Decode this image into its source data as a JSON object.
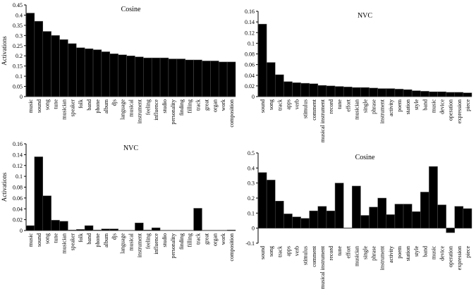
{
  "chart_data": [
    {
      "type": "bar",
      "title": "Cosine",
      "ylabel": "Activations",
      "ylim": [
        0,
        0.45
      ],
      "yticks": [
        "0",
        "0.05",
        "0.1",
        "0.15",
        "0.2",
        "0.25",
        "0.3",
        "0.35",
        "0.4",
        "0.45"
      ],
      "categories": [
        "music",
        "sound",
        "song",
        "tune",
        "musician",
        "speaker",
        "folk",
        "band",
        "phone",
        "album",
        "djs",
        "language",
        "musical",
        "instrument",
        "feeling",
        "influence",
        "studio",
        "personality",
        "finding",
        "filling",
        "track",
        "great",
        "organ",
        "work",
        "composition"
      ],
      "values": [
        0.41,
        0.37,
        0.32,
        0.3,
        0.28,
        0.26,
        0.24,
        0.235,
        0.23,
        0.22,
        0.21,
        0.205,
        0.2,
        0.195,
        0.19,
        0.19,
        0.19,
        0.185,
        0.185,
        0.18,
        0.18,
        0.175,
        0.175,
        0.17,
        0.17
      ]
    },
    {
      "type": "bar",
      "title": "NVC",
      "ylabel": "",
      "ylim": [
        0,
        0.16
      ],
      "yticks": [
        "0",
        "0.02",
        "0.04",
        "0.06",
        "0.08",
        "0.1",
        "0.12",
        "0.14",
        "0.16"
      ],
      "categories": [
        "sound",
        "song",
        "track",
        "apps",
        "verb",
        "stimulus",
        "comment",
        "musical instrument",
        "record",
        "tune",
        "effort",
        "musician",
        "single",
        "phrase",
        "instrument",
        "activity",
        "poem",
        "station",
        "style",
        "band",
        "music",
        "device",
        "operation",
        "expression",
        "piece"
      ],
      "values": [
        0.136,
        0.064,
        0.041,
        0.028,
        0.026,
        0.025,
        0.024,
        0.021,
        0.02,
        0.019,
        0.018,
        0.017,
        0.017,
        0.016,
        0.015,
        0.015,
        0.014,
        0.013,
        0.011,
        0.01,
        0.009,
        0.009,
        0.008,
        0.008,
        0.007
      ]
    },
    {
      "type": "bar",
      "title": "NVC",
      "ylabel": "Activations",
      "ylim": [
        0,
        0.16
      ],
      "yticks": [
        "0",
        "0.02",
        "0.04",
        "0.06",
        "0.08",
        "0.1",
        "0.12",
        "0.14",
        "0.16"
      ],
      "categories": [
        "music",
        "sound",
        "song",
        "tune",
        "musician",
        "speaker",
        "folk",
        "band",
        "phone",
        "album",
        "djs",
        "language",
        "musical",
        "instrument",
        "feeling",
        "influence",
        "studio",
        "personality",
        "finding",
        "filling",
        "track",
        "great",
        "organ",
        "work",
        "composition"
      ],
      "values": [
        0.009,
        0.136,
        0.064,
        0.019,
        0.017,
        0.001,
        0.002,
        0.009,
        0.001,
        0.003,
        0.003,
        0.0005,
        0.0005,
        0.014,
        0.001,
        0.005,
        0.0005,
        0.0005,
        0.0005,
        0.0005,
        0.041,
        0.0005,
        0.0005,
        0.0005,
        0.001
      ]
    },
    {
      "type": "bar",
      "title": "Cosine",
      "ylabel": "",
      "ylim": [
        -0.1,
        0.5
      ],
      "yticks": [
        "-0.1",
        "0",
        "0.1",
        "0.2",
        "0.3",
        "0.4",
        "0.5"
      ],
      "categories": [
        "sound",
        "song",
        "track",
        "apps",
        "verb",
        "stimulus",
        "comment",
        "musical instrument",
        "record",
        "tune",
        "effort",
        "musician",
        "single",
        "phrase",
        "instrument",
        "activity",
        "poem",
        "station",
        "style",
        "band",
        "music",
        "device",
        "operation",
        "expression",
        "piece"
      ],
      "values": [
        0.37,
        0.32,
        0.18,
        0.095,
        0.075,
        0.065,
        0.115,
        0.145,
        0.115,
        0.3,
        0.002,
        0.28,
        0.085,
        0.14,
        0.2,
        0.09,
        0.16,
        0.16,
        0.11,
        0.24,
        0.41,
        0.155,
        -0.03,
        0.145,
        0.13
      ]
    }
  ]
}
